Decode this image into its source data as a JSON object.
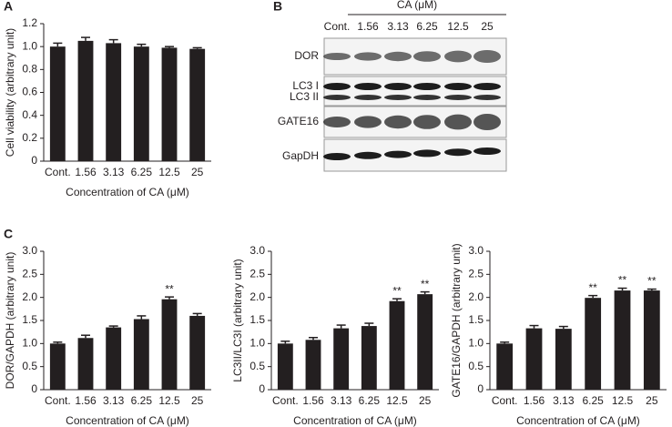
{
  "chart_data": [
    {
      "type": "bar",
      "panel": "A",
      "ylabel": "Cell viability (arbitrary unit)",
      "xlabel": "Concentration of CA (μM)",
      "categories": [
        "Cont.",
        "1.56",
        "3.13",
        "6.25",
        "12.5",
        "25"
      ],
      "values": [
        1.0,
        1.05,
        1.03,
        1.0,
        0.99,
        0.98
      ],
      "errors": [
        0.03,
        0.03,
        0.03,
        0.02,
        0.01,
        0.01
      ],
      "sig_labels": [
        null,
        null,
        null,
        null,
        null,
        null
      ],
      "color": "#231f20",
      "ylim": [
        0,
        1.2
      ],
      "yticks": [
        0,
        0.2,
        0.4,
        0.6,
        0.8,
        {
          "value": 1,
          "label": "1.0"
        },
        1.2
      ]
    },
    {
      "type": "bar",
      "panel": "C",
      "ylabel": "DOR/GAPDH (arbitrary unit)",
      "xlabel": "Concentration of CA (μM)",
      "categories": [
        "Cont.",
        "1.56",
        "3.13",
        "6.25",
        "12.5",
        "25"
      ],
      "values": [
        1.0,
        1.12,
        1.35,
        1.53,
        1.96,
        1.6
      ],
      "errors": [
        0.03,
        0.06,
        0.03,
        0.07,
        0.05,
        0.05
      ],
      "sig_labels": [
        null,
        null,
        null,
        null,
        "**",
        null
      ],
      "color": "#231f20",
      "ylim": [
        0,
        3
      ],
      "yticks": [
        0,
        0.5,
        {
          "value": 1,
          "label": "1.0"
        },
        1.5,
        {
          "value": 2,
          "label": "2.0"
        },
        2.5,
        {
          "value": 3,
          "label": "3.0"
        }
      ]
    },
    {
      "type": "bar",
      "ylabel": "LC3II/LC3I (arbitrary unit)",
      "xlabel": "Concentration of CA (μM)",
      "categories": [
        "Cont.",
        "1.56",
        "3.13",
        "6.25",
        "12.5",
        "25"
      ],
      "values": [
        1.0,
        1.08,
        1.33,
        1.38,
        1.92,
        2.07
      ],
      "errors": [
        0.05,
        0.05,
        0.07,
        0.06,
        0.05,
        0.05
      ],
      "sig_labels": [
        null,
        null,
        null,
        null,
        "**",
        "**"
      ],
      "color": "#231f20",
      "ylim": [
        0,
        3
      ],
      "yticks": [
        0,
        0.5,
        {
          "value": 1,
          "label": "1.0"
        },
        1.5,
        {
          "value": 2,
          "label": "2.0"
        },
        2.5,
        {
          "value": 3,
          "label": "3.0"
        }
      ]
    },
    {
      "type": "bar",
      "ylabel": "GATE16/GAPDH (arbitrary unit)",
      "xlabel": "Concentration of CA (μM)",
      "categories": [
        "Cont.",
        "1.56",
        "3.13",
        "6.25",
        "12.5",
        "25"
      ],
      "values": [
        1.0,
        1.33,
        1.32,
        1.99,
        2.15,
        2.15
      ],
      "errors": [
        0.03,
        0.06,
        0.05,
        0.05,
        0.05,
        0.03
      ],
      "sig_labels": [
        null,
        null,
        null,
        "**",
        "**",
        "**"
      ],
      "color": "#231f20",
      "ylim": [
        0,
        3
      ],
      "yticks": [
        0,
        0.5,
        {
          "value": 1,
          "label": "1.0"
        },
        1.5,
        {
          "value": 2,
          "label": "2.0"
        },
        2.5,
        {
          "value": 3,
          "label": "3.0"
        }
      ]
    }
  ],
  "blot": {
    "panel": "B",
    "title": "CA (μM)",
    "lanes": [
      "Cont.",
      "1.56",
      "3.13",
      "6.25",
      "12.5",
      "25"
    ],
    "rows": [
      "DOR",
      "LC3 I",
      "LC3 II",
      "GATE16",
      "GapDH"
    ]
  }
}
